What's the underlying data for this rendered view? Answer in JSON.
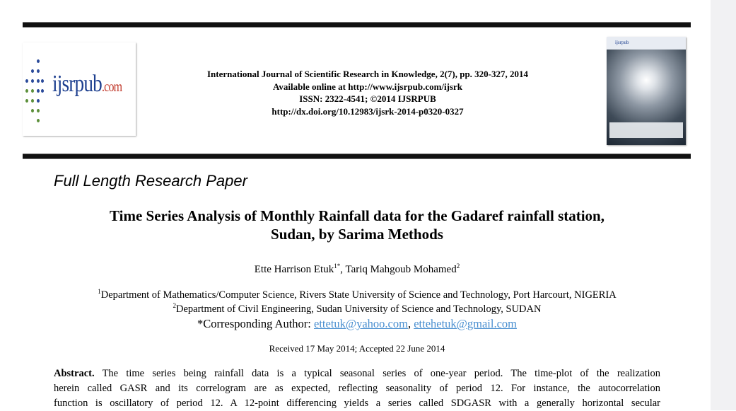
{
  "header": {
    "logo_text": "ijsrpub",
    "logo_suffix": ".com",
    "journal_lines": [
      "International Journal of Scientific Research in Knowledge, 2(7), pp. 320-327, 2014",
      "Available online at http://www.ijsrpub.com/ijsrk",
      "ISSN: 2322-4541; ©2014 IJSRPUB",
      "http://dx.doi.org/10.12983/ijsrk-2014-p0320-0327"
    ],
    "cover_logo": "ijsrpub"
  },
  "paper_type": "Full Length Research Paper",
  "title_lines": [
    "Time Series Analysis of Monthly Rainfall data for the Gadaref rainfall station,",
    "Sudan, by Sarima Methods"
  ],
  "authors": [
    {
      "name": "Ette Harrison Etuk",
      "sup": "1*"
    },
    {
      "name": "Tariq Mahgoub Mohamed",
      "sup": "2"
    }
  ],
  "affiliations": [
    {
      "sup": "1",
      "text": "Department of Mathematics/Computer Science, Rivers State University of Science and Technology, Port Harcourt, NIGERIA"
    },
    {
      "sup": "2",
      "text": "Department of Civil Engineering, Sudan University of Science and Technology, SUDAN"
    }
  ],
  "corresponding": {
    "label": "*Corresponding Author: ",
    "email1": "ettetuk@yahoo.com",
    "sep": ", ",
    "email2": "ettehetuk@gmail.com"
  },
  "received": "Received 17 May 2014; Accepted 22 June 2014",
  "abstract": {
    "label": "Abstract.",
    "lines": [
      " The time series being rainfall data is a typical seasonal series of one-year period. The time-plot of the realization",
      "herein called GASR and its correlogram are as expected, reflecting seasonality of period 12. For instance, the autocorrelation",
      "function is oscillatory of period 12. A 12-point differencing yields a series called SDGASR with a generally horizontal secular"
    ]
  }
}
